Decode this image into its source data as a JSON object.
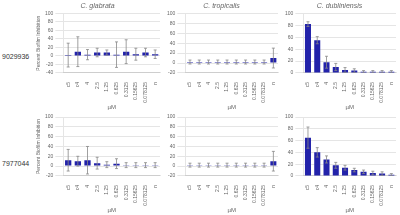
{
  "chart_data": [
    {
      "type": "bar",
      "title": "C. glabrata",
      "annotations": [
        "9029936"
      ],
      "xlabel": "µM",
      "ylabel": "Percent Biofilm Inhibition",
      "categories": [
        "c5",
        "c4",
        "4",
        "2.5",
        "1.25",
        "0.625",
        "0.3125",
        "0.15625",
        "0.078125",
        "n"
      ],
      "values": [
        2,
        10,
        3,
        8,
        8,
        3,
        10,
        4,
        8,
        4
      ],
      "errors": [
        28,
        35,
        12,
        10,
        6,
        30,
        28,
        14,
        10,
        10
      ],
      "color": "#2222aa",
      "ylim": [
        -40,
        100
      ],
      "yticks": [
        -40,
        -20,
        0,
        20,
        40,
        60,
        80,
        100
      ],
      "grid": true
    },
    {
      "type": "bar",
      "title": "C. tropicalis",
      "xlabel": "µM",
      "categories": [
        "c5",
        "c4",
        "4",
        "2.5",
        "1.25",
        "0.625",
        "0.3125",
        "0.15625",
        "0.078125",
        "n"
      ],
      "values": [
        2,
        2,
        2,
        2,
        2,
        2,
        2,
        2,
        2,
        10
      ],
      "errors": [
        4,
        4,
        4,
        4,
        4,
        4,
        4,
        4,
        4,
        20
      ],
      "color": "#2222aa",
      "ylim": [
        -20,
        100
      ],
      "yticks": [
        -20,
        0,
        20,
        40,
        60,
        80,
        100
      ],
      "grid": true
    },
    {
      "type": "bar",
      "title": "C. dubliniensis",
      "xlabel": "µM",
      "categories": [
        "c5",
        "c4",
        "4",
        "2.5",
        "1.25",
        "0.625",
        "0.3125",
        "0.15625",
        "0.078125",
        "n"
      ],
      "values": [
        82,
        55,
        18,
        10,
        5,
        4,
        2,
        2,
        2,
        2
      ],
      "errors": [
        4,
        6,
        10,
        6,
        4,
        3,
        2,
        2,
        2,
        2
      ],
      "color": "#2222aa",
      "ylim": [
        0,
        100
      ],
      "yticks": [
        0,
        20,
        40,
        60,
        80,
        100
      ],
      "grid": true
    },
    {
      "type": "bar",
      "annotations": [
        "7977044"
      ],
      "xlabel": "µM",
      "ylabel": "Percent Biofilm Inhibition",
      "categories": [
        "c5",
        "c4",
        "4",
        "2.5",
        "1.25",
        "0.625",
        "0.3125",
        "0.15625",
        "0.078125",
        "n"
      ],
      "values": [
        12,
        10,
        12,
        6,
        3,
        5,
        2,
        2,
        2,
        2
      ],
      "errors": [
        22,
        10,
        28,
        12,
        6,
        10,
        5,
        5,
        5,
        5
      ],
      "color": "#2222aa",
      "ylim": [
        -20,
        100
      ],
      "yticks": [
        -20,
        0,
        20,
        40,
        60,
        80,
        100
      ],
      "grid": true
    },
    {
      "type": "bar",
      "xlabel": "µM",
      "categories": [
        "c5",
        "c4",
        "4",
        "2.5",
        "1.25",
        "0.625",
        "0.3125",
        "0.15625",
        "0.078125",
        "n"
      ],
      "values": [
        2,
        2,
        2,
        2,
        2,
        2,
        2,
        2,
        2,
        10
      ],
      "errors": [
        4,
        4,
        4,
        4,
        4,
        4,
        4,
        4,
        4,
        20
      ],
      "color": "#2222aa",
      "ylim": [
        -20,
        100
      ],
      "yticks": [
        -20,
        0,
        20,
        40,
        60,
        80,
        100
      ],
      "grid": true
    },
    {
      "type": "bar",
      "xlabel": "µM",
      "categories": [
        "c5",
        "c4",
        "4",
        "2.5",
        "1.25",
        "0.625",
        "0.3125",
        "0.15625",
        "0.078125",
        "n"
      ],
      "values": [
        65,
        40,
        28,
        18,
        14,
        10,
        7,
        5,
        4,
        2
      ],
      "errors": [
        18,
        8,
        6,
        5,
        4,
        3,
        3,
        3,
        3,
        2
      ],
      "color": "#2222aa",
      "ylim": [
        0,
        100
      ],
      "yticks": [
        0,
        20,
        40,
        60,
        80,
        100
      ],
      "grid": true
    }
  ]
}
